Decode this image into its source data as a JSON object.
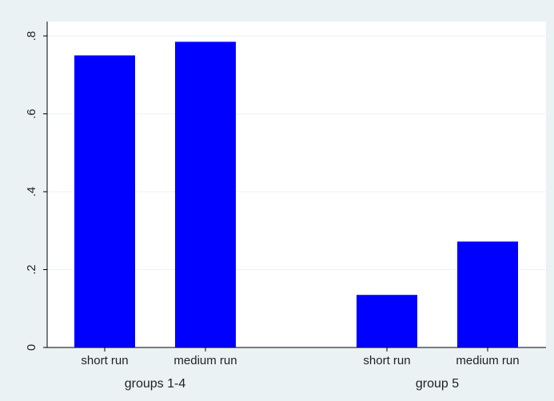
{
  "chart_data": {
    "type": "bar",
    "groups": [
      {
        "label": "groups 1-4",
        "categories": [
          "short run",
          "medium run"
        ],
        "values": [
          0.75,
          0.785
        ]
      },
      {
        "label": "group 5",
        "categories": [
          "short run",
          "medium run"
        ],
        "values": [
          0.135,
          0.272
        ]
      }
    ],
    "y_ticks": [
      {
        "value": 0,
        "label": "0"
      },
      {
        "value": 0.2,
        "label": ".2"
      },
      {
        "value": 0.4,
        "label": ".4"
      },
      {
        "value": 0.6,
        "label": ".6"
      },
      {
        "value": 0.8,
        "label": ".8"
      }
    ],
    "ylim": [
      0,
      0.8
    ],
    "grid": true,
    "bar_color": "#0000ff",
    "title": "",
    "xlabel": "",
    "ylabel": ""
  }
}
